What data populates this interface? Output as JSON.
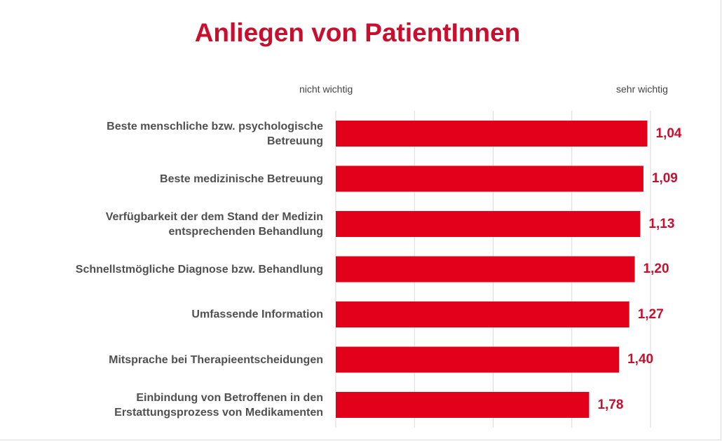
{
  "title": "Anliegen von PatientInnen",
  "axis_hints": {
    "left": "nicht wichtig",
    "right": "sehr wichtig"
  },
  "colors": {
    "bar": "#e2001a",
    "title": "#c8102e",
    "value": "#c8102e",
    "grid": "#d9d9d9"
  },
  "chart_data": {
    "type": "bar",
    "orientation": "horizontal",
    "title": "Anliegen von PatientInnen",
    "categories": [
      "Beste menschliche bzw. psychologische Betreuung",
      "Beste medizinische Betreuung",
      "Verfügbarkeit der dem Stand der Medizin entsprechenden Behandlung",
      "Schnellstmögliche Diagnose bzw. Behandlung",
      "Umfassende Information",
      "Mitsprache bei Therapieentscheidungen",
      "Einbindung von Betroffenen in den Erstattungsprozess von Medikamenten"
    ],
    "category_lines": [
      [
        "Beste menschliche bzw. psychologische",
        "Betreuung"
      ],
      [
        "Beste medizinische Betreuung"
      ],
      [
        "Verfügbarkeit der dem Stand der Medizin",
        "entsprechenden Behandlung"
      ],
      [
        "Schnellstmögliche Diagnose bzw. Behandlung"
      ],
      [
        "Umfassende Information"
      ],
      [
        "Mitsprache bei Therapieentscheidungen"
      ],
      [
        "Einbindung von Betroffenen in den",
        "Erstattungsprozess von Medikamenten"
      ]
    ],
    "values": [
      1.04,
      1.09,
      1.13,
      1.2,
      1.27,
      1.4,
      1.78
    ],
    "value_labels": [
      "1,04",
      "1,09",
      "1,13",
      "1,20",
      "1,27",
      "1,40",
      "1,78"
    ],
    "xlim": [
      5,
      1
    ],
    "x_reversed": true,
    "grid": true,
    "legend": "none"
  }
}
